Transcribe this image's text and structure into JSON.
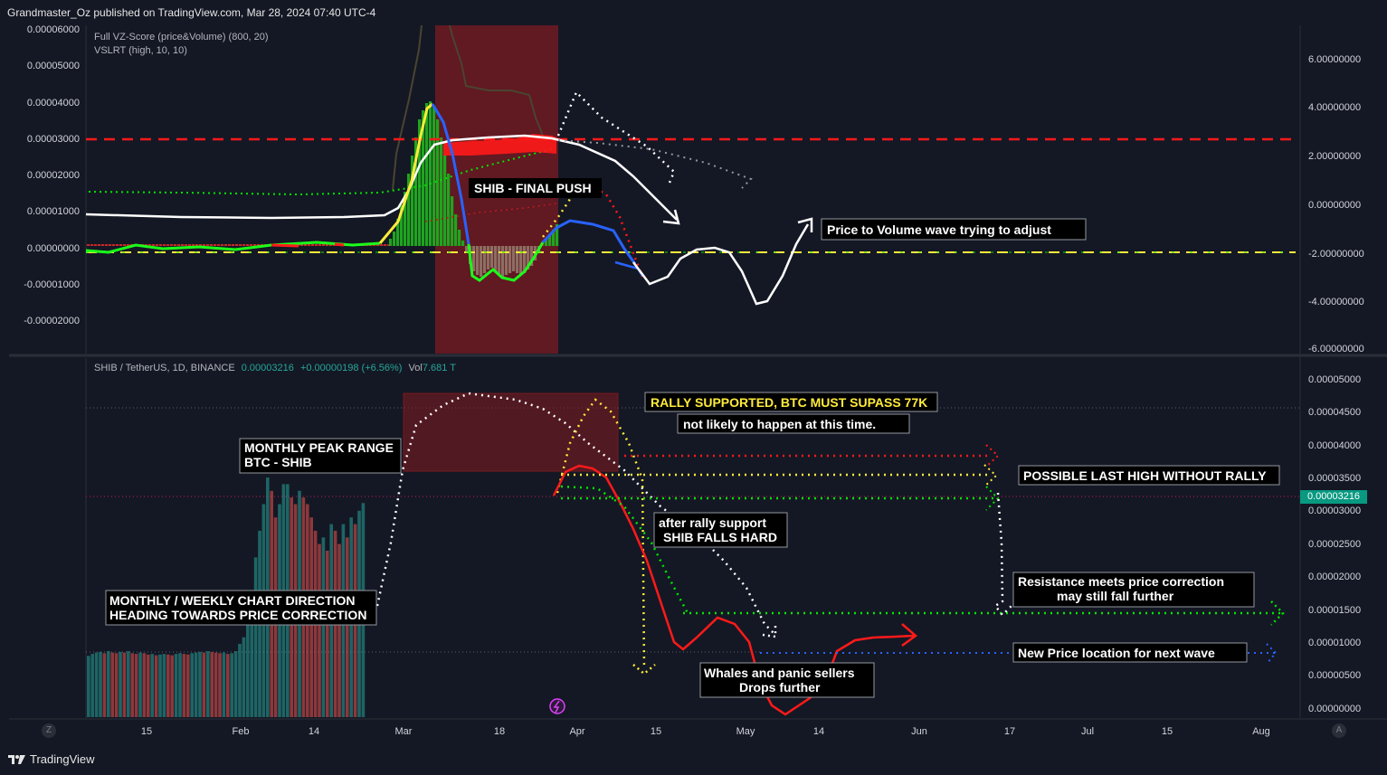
{
  "header": {
    "publisher": "Grandmaster_Oz published on TradingView.com, Mar 28, 2024 07:40 UTC-4"
  },
  "footer": {
    "brand": "TradingView"
  },
  "top_pane": {
    "legend": [
      "Full VZ-Score (price&Volume) (800, 20)",
      "VSLRT (high, 10, 10)"
    ],
    "left_ticks": [
      "0.00006000",
      "0.00005000",
      "0.00004000",
      "0.00003000",
      "0.00002000",
      "0.00001000",
      "0.00000000",
      "-0.00001000",
      "-0.00002000"
    ],
    "right_ticks": [
      "6.00000000",
      "4.00000000",
      "2.00000000",
      "0.00000000",
      "-2.00000000",
      "-4.00000000",
      "-6.00000000"
    ],
    "annotations": {
      "final_push": "SHIB - FINAL PUSH",
      "wave": "Price to Volume wave trying to adjust"
    }
  },
  "bottom_pane": {
    "symbol": "SHIB / TetherUS, 1D, BINANCE",
    "price": "0.00003216",
    "change": "+0.00000198 (+6.56%)",
    "vol_label": "Vol",
    "vol_value": "7.681 T",
    "price_tag": "0.00003216",
    "right_ticks": [
      "0.00005000",
      "0.00004500",
      "0.00004000",
      "0.00003500",
      "0.00003000",
      "0.00002500",
      "0.00002000",
      "0.00001500",
      "0.00001000",
      "0.00000500",
      "0.00000000"
    ],
    "annotations": {
      "rally": "RALLY SUPPORTED, BTC MUST SUPASS 77K",
      "not_likely": "not likely to happen at this time.",
      "monthly_peak": [
        "MONTHLY PEAK RANGE",
        "BTC - SHIB"
      ],
      "last_high": "POSSIBLE LAST HIGH WITHOUT RALLY",
      "after_rally": [
        "after rally support",
        "SHIB FALLS HARD"
      ],
      "monthly_weekly": [
        "MONTHLY / WEEKLY CHART DIRECTION",
        "HEADING TOWARDS PRICE CORRECTION"
      ],
      "resistance": [
        "Resistance meets price correction",
        "may still fall further"
      ],
      "new_price": "New Price location for next wave",
      "whales": [
        "Whales and panic sellers",
        "Drops further"
      ]
    }
  },
  "x_axis": {
    "labels": [
      "15",
      "Feb",
      "14",
      "Mar",
      "18",
      "Apr",
      "15",
      "May",
      "14",
      "Jun",
      "17",
      "Jul",
      "15",
      "Aug"
    ]
  },
  "colors": {
    "up": "#26a69a",
    "down": "#ef5350",
    "bg": "#141824",
    "red_line": "#ff1a1a",
    "yellow": "#ffeb3b",
    "green": "#00e600"
  },
  "chart_data": {
    "type": "bar",
    "symbol": "SHIB / TetherUS, 1D, BINANCE",
    "last_price": 3.216e-05,
    "ylim": [
      0,
      5e-05
    ],
    "price_levels": {
      "red_dotted": 3.84e-05,
      "yellow_dotted": 3.55e-05,
      "green_dotted": 3.2e-05,
      "projection_low": 1.45e-05,
      "new_price": 8.5e-06,
      "peak_range_top": 4.8e-05,
      "peak_range_bottom": 3.6e-05
    },
    "candles_close": [
      9.2e-06,
      9.5e-06,
      9.7e-06,
      9.8e-06,
      9.6e-06,
      9.9e-06,
      9.7e-06,
      9.6e-06,
      9.8e-06,
      9.7e-06,
      9.9e-06,
      9.6e-06,
      9.5e-06,
      9.7e-06,
      9.6e-06,
      9.4e-06,
      9.5e-06,
      9.3e-06,
      9.4e-06,
      9.5e-06,
      9.4e-06,
      9.3e-06,
      9.5e-06,
      9.6e-06,
      9.5e-06,
      9.4e-06,
      9.6e-06,
      9.7e-06,
      9.8e-06,
      9.7e-06,
      9.9e-06,
      9.8e-06,
      9.7e-06,
      9.6e-06,
      9.7e-06,
      9.5e-06,
      9.6e-06,
      9.9e-06,
      1.1e-05,
      1.2e-05,
      1.4e-05,
      1.8e-05,
      2.4e-05,
      2.8e-05,
      3.2e-05,
      3.6e-05,
      3.4e-05,
      3e-05,
      3.2e-05,
      3.5e-05,
      3.5e-05,
      3.3e-05,
      3.2e-05,
      3.4e-05,
      3.3e-05,
      3.2e-05,
      3e-05,
      2.8e-05,
      2.6e-05,
      2.7e-05,
      2.5e-05,
      2.9e-05,
      2.8e-05,
      2.6e-05,
      2.9e-05,
      2.7e-05,
      3e-05,
      2.9e-05,
      3.1e-05,
      3.216e-05
    ]
  }
}
